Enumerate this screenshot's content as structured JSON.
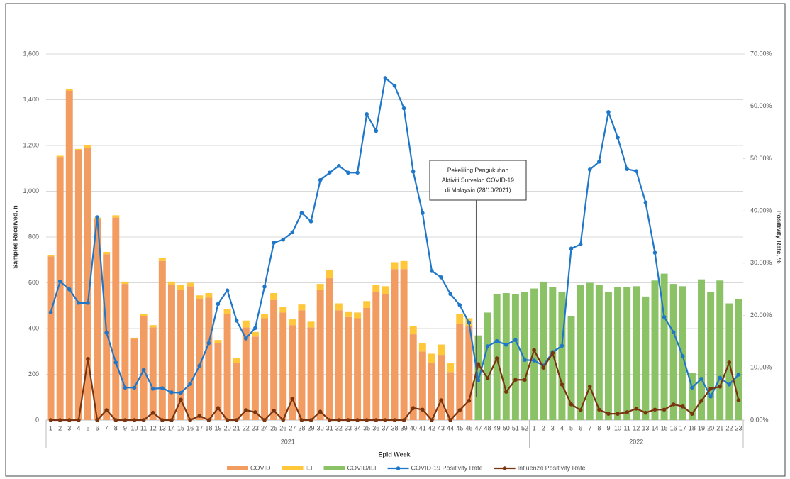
{
  "chart_data": {
    "type": "combo",
    "y_label": "Samples Received, n",
    "y2_label": "Positivity Rate, %",
    "x_label": "Epid Week",
    "annotation": [
      "Pekeliling Pengukuhan",
      "Aktiviti Survelan COVID-19",
      "di Malaysia (28/10/2021)"
    ],
    "categories": [
      "1",
      "2",
      "3",
      "4",
      "5",
      "6",
      "7",
      "8",
      "9",
      "10",
      "11",
      "12",
      "13",
      "14",
      "15",
      "16",
      "17",
      "18",
      "19",
      "20",
      "21",
      "22",
      "23",
      "24",
      "25",
      "26",
      "27",
      "28",
      "29",
      "30",
      "31",
      "32",
      "33",
      "34",
      "35",
      "36",
      "37",
      "38",
      "39",
      "40",
      "41",
      "42",
      "43",
      "44",
      "45",
      "46",
      "47",
      "48",
      "49",
      "50",
      "51",
      "52",
      "1",
      "2",
      "3",
      "4",
      "5",
      "6",
      "7",
      "8",
      "9",
      "10",
      "11",
      "12",
      "13",
      "14",
      "15",
      "16",
      "17",
      "18",
      "19",
      "20",
      "21",
      "22",
      "23"
    ],
    "groups": [
      "2021",
      "2021",
      "2021",
      "2021",
      "2021",
      "2021",
      "2021",
      "2021",
      "2021",
      "2021",
      "2021",
      "2021",
      "2021",
      "2021",
      "2021",
      "2021",
      "2021",
      "2021",
      "2021",
      "2021",
      "2021",
      "2021",
      "2021",
      "2021",
      "2021",
      "2021",
      "2021",
      "2021",
      "2021",
      "2021",
      "2021",
      "2021",
      "2021",
      "2021",
      "2021",
      "2021",
      "2021",
      "2021",
      "2021",
      "2021",
      "2021",
      "2021",
      "2021",
      "2021",
      "2021",
      "2021",
      "2021",
      "2021",
      "2021",
      "2021",
      "2021",
      "2021",
      "2022",
      "2022",
      "2022",
      "2022",
      "2022",
      "2022",
      "2022",
      "2022",
      "2022",
      "2022",
      "2022",
      "2022",
      "2022",
      "2022",
      "2022",
      "2022",
      "2022",
      "2022",
      "2022",
      "2022",
      "2022",
      "2022",
      "2022"
    ],
    "ylim": [
      0,
      1600
    ],
    "yticks": [
      0,
      200,
      400,
      600,
      800,
      {
        "value": 1000,
        "label": "1,000"
      },
      {
        "value": 1200,
        "label": "1,200"
      },
      {
        "value": 1400,
        "label": "1,400"
      },
      {
        "value": 1600,
        "label": "1,600"
      }
    ],
    "y2lim": [
      0,
      70
    ],
    "y2ticks": [
      {
        "value": 0,
        "label": "0.00%"
      },
      {
        "value": 10,
        "label": "10.00%"
      },
      {
        "value": 20,
        "label": "20.00%"
      },
      {
        "value": 30,
        "label": "30.00%"
      },
      {
        "value": 40,
        "label": "40.00%"
      },
      {
        "value": 50,
        "label": "50.00%"
      },
      {
        "value": 60,
        "label": "60.00%"
      },
      {
        "value": 70,
        "label": "70.00%"
      }
    ],
    "series": [
      {
        "name": "COVID",
        "type": "bar",
        "color": "#f29c62",
        "values": [
          715,
          1150,
          1440,
          1180,
          1190,
          880,
          725,
          885,
          595,
          355,
          455,
          405,
          695,
          590,
          570,
          585,
          530,
          535,
          335,
          465,
          250,
          405,
          365,
          445,
          525,
          470,
          415,
          480,
          405,
          570,
          620,
          480,
          450,
          445,
          490,
          560,
          550,
          660,
          660,
          375,
          300,
          250,
          285,
          210,
          420,
          410,
          null,
          null,
          null,
          null,
          null,
          null,
          null,
          null,
          null,
          null,
          null,
          null,
          null,
          null,
          null,
          null,
          null,
          null,
          null,
          null,
          null,
          null,
          null,
          null,
          null,
          null,
          null,
          null,
          null
        ]
      },
      {
        "name": "ILI",
        "type": "bar",
        "color": "#ffc73a",
        "values": [
          5,
          5,
          5,
          5,
          10,
          5,
          10,
          10,
          10,
          5,
          10,
          10,
          15,
          15,
          20,
          15,
          15,
          20,
          15,
          20,
          20,
          30,
          20,
          20,
          30,
          25,
          25,
          25,
          25,
          25,
          35,
          30,
          25,
          25,
          30,
          30,
          35,
          30,
          35,
          35,
          35,
          40,
          45,
          40,
          45,
          35,
          null,
          null,
          null,
          null,
          null,
          null,
          null,
          null,
          null,
          null,
          null,
          null,
          null,
          null,
          null,
          null,
          null,
          null,
          null,
          null,
          null,
          null,
          null,
          null,
          null,
          null,
          null,
          null,
          null
        ]
      },
      {
        "name": "COVID/ILI",
        "type": "bar",
        "color": "#8cc266",
        "values": [
          null,
          null,
          null,
          null,
          null,
          null,
          null,
          null,
          null,
          null,
          null,
          null,
          null,
          null,
          null,
          null,
          null,
          null,
          null,
          null,
          null,
          null,
          null,
          null,
          null,
          null,
          null,
          null,
          null,
          null,
          null,
          null,
          null,
          null,
          null,
          null,
          null,
          null,
          null,
          null,
          null,
          null,
          null,
          null,
          null,
          null,
          370,
          470,
          550,
          555,
          550,
          560,
          575,
          605,
          580,
          560,
          455,
          590,
          600,
          590,
          560,
          580,
          580,
          585,
          540,
          610,
          640,
          595,
          585,
          205,
          615,
          560,
          610,
          510,
          530
        ]
      },
      {
        "name": "COVID-19 Positivity Rate",
        "type": "line",
        "axis": "y2",
        "color": "#1f77c9",
        "values": [
          20.6,
          26.5,
          25.0,
          22.4,
          22.4,
          38.8,
          16.7,
          11.0,
          6.2,
          6.2,
          9.6,
          6.0,
          6.1,
          5.3,
          5.2,
          6.9,
          10.4,
          14.7,
          22.2,
          24.8,
          19.0,
          15.6,
          17.6,
          25.5,
          33.9,
          34.5,
          35.9,
          39.6,
          38.0,
          45.9,
          47.3,
          48.6,
          47.3,
          47.3,
          58.5,
          55.3,
          65.4,
          63.9,
          59.6,
          47.5,
          39.6,
          28.5,
          27.3,
          24.1,
          22.0,
          18.6,
          7.6,
          14.1,
          15.1,
          14.4,
          15.3,
          11.5,
          11.4,
          10.4,
          13.0,
          14.2,
          32.8,
          33.6,
          47.9,
          49.4,
          58.9,
          54.0,
          48.0,
          47.6,
          41.6,
          32.0,
          19.7,
          16.8,
          12.2,
          6.2,
          7.9,
          4.5,
          8.1,
          6.8,
          8.7
        ]
      },
      {
        "name": "Influenza Positivity Rate",
        "type": "line",
        "axis": "y2",
        "color": "#7a3510",
        "values": [
          0,
          0,
          0,
          0,
          11.7,
          0,
          1.9,
          0,
          0,
          0,
          0,
          1.4,
          0,
          0,
          3.9,
          0,
          0.8,
          0,
          2.3,
          0,
          0,
          1.9,
          1.5,
          0,
          1.8,
          0,
          4.1,
          0,
          0,
          1.6,
          0,
          0,
          0,
          0,
          0,
          0,
          0,
          0,
          0,
          2.3,
          2.0,
          0,
          3.8,
          0,
          1.9,
          3.7,
          10.7,
          8.0,
          11.8,
          5.4,
          7.7,
          7.7,
          13.4,
          10.0,
          12.8,
          6.8,
          3.0,
          1.9,
          6.4,
          2.0,
          1.2,
          1.2,
          1.5,
          2.2,
          1.4,
          2.0,
          2.0,
          3.0,
          2.6,
          1.2,
          3.7,
          6.0,
          6.4,
          11.0,
          3.8
        ]
      }
    ]
  }
}
